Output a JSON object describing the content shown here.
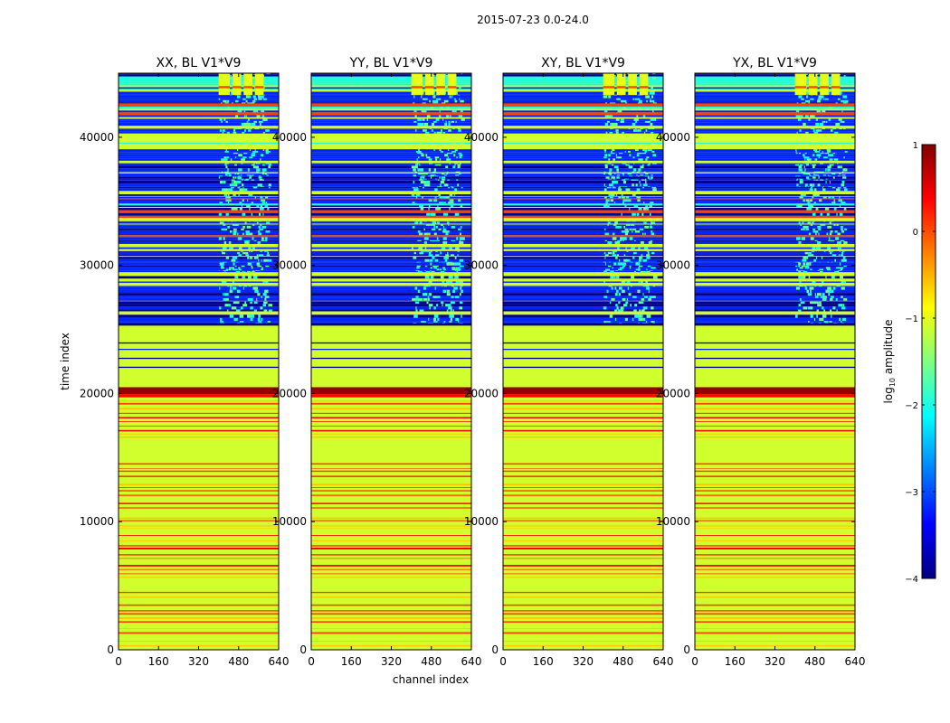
{
  "chart_data": {
    "type": "heatmap",
    "title": "2015-07-23 0.0-24.0",
    "xlabel": "channel index",
    "ylabel": "time index",
    "xlim": [
      0,
      640
    ],
    "ylim": [
      0,
      45000
    ],
    "x_ticks": [
      0,
      160,
      320,
      480,
      640
    ],
    "y_ticks": [
      0,
      10000,
      20000,
      30000,
      40000
    ],
    "panels": [
      {
        "title": "XX, BL V1*V9"
      },
      {
        "title": "YY, BL V1*V9"
      },
      {
        "title": "XY, BL V1*V9"
      },
      {
        "title": "YX, BL V1*V9"
      }
    ],
    "colorbar": {
      "label": "log10 amplitude",
      "label_base": "log",
      "label_sub": "10",
      "label_rest": " amplitude",
      "range": [
        -4,
        1
      ],
      "ticks": [
        "1",
        "0",
        "−1",
        "−2",
        "−3",
        "−4"
      ],
      "colormap": "jet"
    },
    "rfi_channels": [
      400,
      600
    ],
    "regions": [
      {
        "from": 0,
        "to": 19500,
        "level": -1.1,
        "stripes": "orange-red"
      },
      {
        "from": 19500,
        "to": 20500,
        "level": 0.9,
        "stripes": "none"
      },
      {
        "from": 20500,
        "to": 25500,
        "level": -1.1,
        "stripes": "dark-blue"
      },
      {
        "from": 25500,
        "to": 45000,
        "level": -3.2,
        "stripes": "mixed"
      }
    ]
  }
}
